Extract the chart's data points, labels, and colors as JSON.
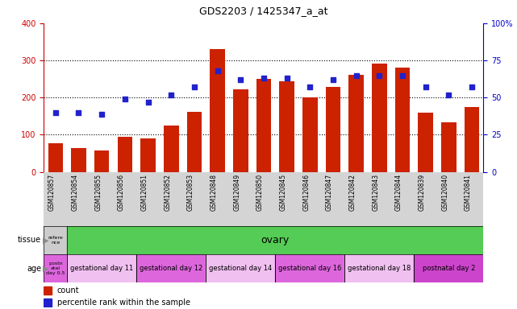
{
  "title": "GDS2203 / 1425347_a_at",
  "samples": [
    "GSM120857",
    "GSM120854",
    "GSM120855",
    "GSM120856",
    "GSM120851",
    "GSM120852",
    "GSM120853",
    "GSM120848",
    "GSM120849",
    "GSM120850",
    "GSM120845",
    "GSM120846",
    "GSM120847",
    "GSM120842",
    "GSM120843",
    "GSM120844",
    "GSM120839",
    "GSM120840",
    "GSM120841"
  ],
  "counts": [
    78,
    63,
    58,
    95,
    90,
    125,
    162,
    330,
    222,
    250,
    245,
    200,
    228,
    262,
    292,
    282,
    160,
    133,
    175
  ],
  "percentiles": [
    40,
    40,
    39,
    49,
    47,
    52,
    57,
    68,
    62,
    63,
    63,
    57,
    62,
    65,
    65,
    65,
    57,
    52,
    57
  ],
  "bar_color": "#cc2200",
  "marker_color": "#2222cc",
  "ylim_left": [
    0,
    400
  ],
  "ylim_right": [
    0,
    100
  ],
  "yticks_left": [
    0,
    100,
    200,
    300,
    400
  ],
  "yticks_right": [
    0,
    25,
    50,
    75,
    100
  ],
  "tissue_first_text": "refere\nnce",
  "tissue_first_color": "#cccccc",
  "tissue_rest_text": "ovary",
  "tissue_rest_color": "#55cc55",
  "age_groups": [
    {
      "text": "postn\natal\nday 0.5",
      "color": "#dd66dd",
      "count": 1
    },
    {
      "text": "gestational day 11",
      "color": "#f0c0f0",
      "count": 3
    },
    {
      "text": "gestational day 12",
      "color": "#dd66dd",
      "count": 3
    },
    {
      "text": "gestational day 14",
      "color": "#f0c0f0",
      "count": 3
    },
    {
      "text": "gestational day 16",
      "color": "#dd66dd",
      "count": 3
    },
    {
      "text": "gestational day 18",
      "color": "#f0c0f0",
      "count": 3
    },
    {
      "text": "postnatal day 2",
      "color": "#cc44cc",
      "count": 3
    }
  ],
  "background_color": "#ffffff",
  "ylabel_left_color": "#cc0000",
  "ylabel_right_color": "#0000cc"
}
